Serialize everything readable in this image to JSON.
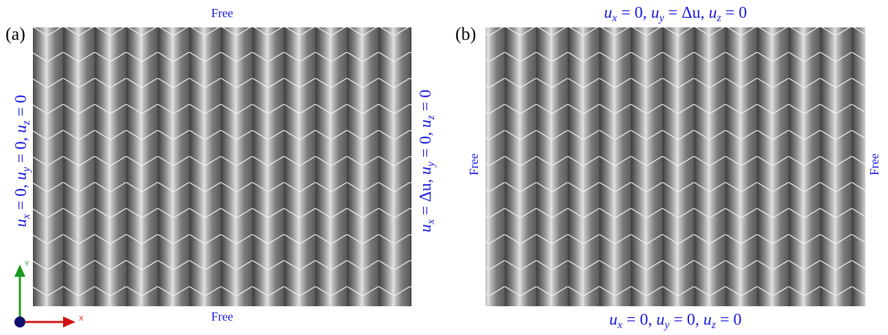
{
  "panel_a": {
    "label": "(a)",
    "top": "Free",
    "bottom": "Free",
    "left": [
      {
        "var": "u",
        "sub": "x",
        "rest": " = 0, "
      },
      {
        "var": "u",
        "sub": "y",
        "rest": " = 0, "
      },
      {
        "var": "u",
        "sub": "z",
        "rest": " = 0"
      }
    ],
    "right": [
      {
        "var": "u",
        "sub": "x",
        "rest": " = Δu, "
      },
      {
        "var": "u",
        "sub": "y",
        "rest": " = 0, "
      },
      {
        "var": "u",
        "sub": "z",
        "rest": " = 0"
      }
    ]
  },
  "panel_b": {
    "label": "(b)",
    "left": "Free",
    "right": "Free",
    "top": [
      {
        "var": "u",
        "sub": "x",
        "rest": " = 0, "
      },
      {
        "var": "u",
        "sub": "y",
        "rest": " = Δu, "
      },
      {
        "var": "u",
        "sub": "z",
        "rest": " = 0"
      }
    ],
    "bottom": [
      {
        "var": "u",
        "sub": "x",
        "rest": " = 0, "
      },
      {
        "var": "u",
        "sub": "y",
        "rest": " = 0, "
      },
      {
        "var": "u",
        "sub": "z",
        "rest": " = 0"
      }
    ]
  },
  "axes": {
    "y": "Y",
    "x": "X"
  }
}
